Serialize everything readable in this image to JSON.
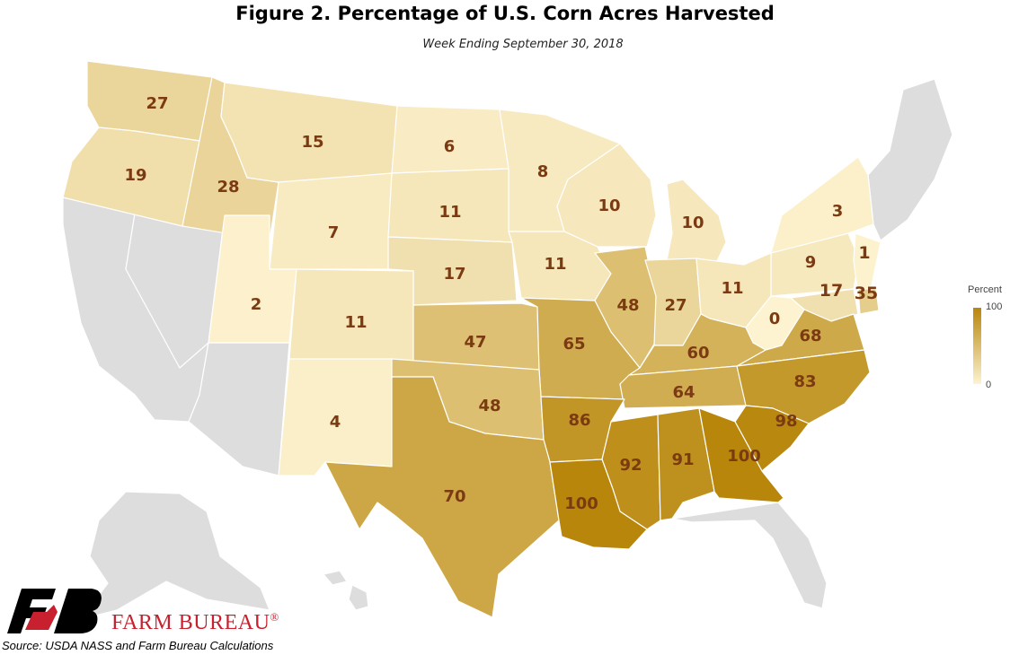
{
  "title": "Figure 2. Percentage of U.S. Corn Acres Harvested",
  "subtitle": "Week Ending September 30, 2018",
  "colors": {
    "low": "#fdf3d0",
    "high": "#b8860b",
    "no_data": "#dddddd",
    "value_text": "#7b3a12",
    "brand_red": "#c8202e"
  },
  "legend": {
    "title": "Percent",
    "max_label": "100",
    "min_label": "0"
  },
  "chart_data": {
    "type": "choropleth",
    "scale": {
      "min": 0,
      "max": 100
    },
    "states": [
      {
        "state": "WA",
        "value": 27
      },
      {
        "state": "OR",
        "value": 19
      },
      {
        "state": "ID",
        "value": 28
      },
      {
        "state": "MT",
        "value": 15
      },
      {
        "state": "ND",
        "value": 6
      },
      {
        "state": "MN",
        "value": 8
      },
      {
        "state": "WY",
        "value": 7
      },
      {
        "state": "SD",
        "value": 11
      },
      {
        "state": "WI",
        "value": 10
      },
      {
        "state": "MI",
        "value": 10
      },
      {
        "state": "NY",
        "value": 3
      },
      {
        "state": "NE",
        "value": 17
      },
      {
        "state": "IA",
        "value": 11
      },
      {
        "state": "UT",
        "value": 2
      },
      {
        "state": "CO",
        "value": 11
      },
      {
        "state": "PA",
        "value": 9
      },
      {
        "state": "NJ",
        "value": 1
      },
      {
        "state": "IL",
        "value": 48
      },
      {
        "state": "IN",
        "value": 27
      },
      {
        "state": "OH",
        "value": 11
      },
      {
        "state": "MD",
        "value": 17
      },
      {
        "state": "DE",
        "value": 35
      },
      {
        "state": "KS",
        "value": 47
      },
      {
        "state": "MO",
        "value": 65
      },
      {
        "state": "WV",
        "value": 0
      },
      {
        "state": "VA",
        "value": 68
      },
      {
        "state": "KY",
        "value": 60
      },
      {
        "state": "NM",
        "value": 4
      },
      {
        "state": "OK",
        "value": 48
      },
      {
        "state": "TN",
        "value": 64
      },
      {
        "state": "NC",
        "value": 83
      },
      {
        "state": "AR",
        "value": 86
      },
      {
        "state": "SC",
        "value": 98
      },
      {
        "state": "TX",
        "value": 70
      },
      {
        "state": "MS",
        "value": 92
      },
      {
        "state": "AL",
        "value": 91
      },
      {
        "state": "GA",
        "value": 100
      },
      {
        "state": "LA",
        "value": 100
      }
    ]
  },
  "brand": {
    "name": "FARM BUREAU",
    "mark": "®"
  },
  "source": "Source: USDA NASS and Farm Bureau Calculations"
}
